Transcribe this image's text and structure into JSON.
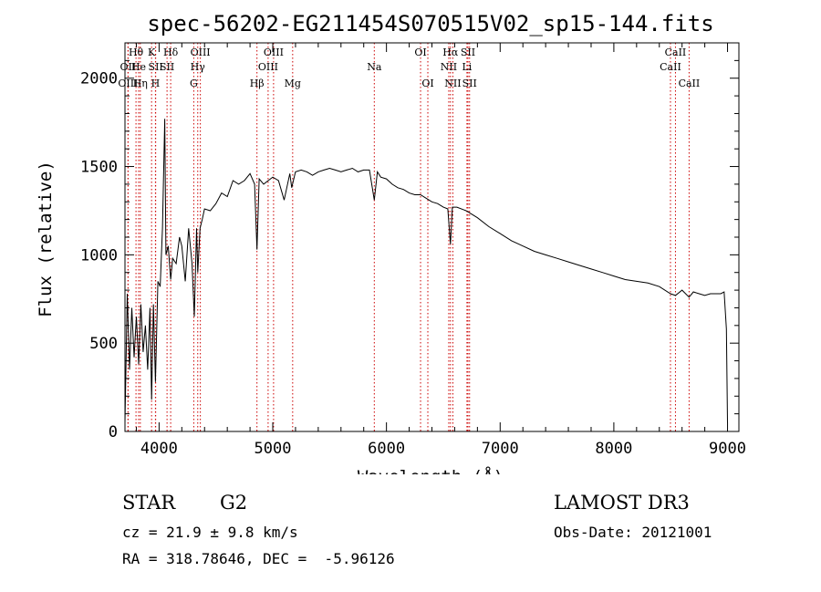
{
  "chart_data": {
    "type": "line",
    "title": "spec-56202-EG211454S070515V02_sp15-144.fits",
    "xlabel": "Wavelength (Å)",
    "ylabel": "Flux (relative)",
    "xlim": [
      3700,
      9100
    ],
    "ylim": [
      0,
      2200
    ],
    "xticks": [
      4000,
      5000,
      6000,
      7000,
      8000,
      9000
    ],
    "yticks": [
      0,
      500,
      1000,
      1500,
      2000
    ],
    "grid": false,
    "series": [
      {
        "name": "spectrum",
        "x": [
          3700,
          3720,
          3740,
          3760,
          3780,
          3800,
          3820,
          3840,
          3860,
          3880,
          3900,
          3920,
          3934,
          3950,
          3968,
          3990,
          4010,
          4030,
          4050,
          4060,
          4080,
          4102,
          4120,
          4150,
          4180,
          4200,
          4230,
          4260,
          4290,
          4310,
          4330,
          4340,
          4360,
          4380,
          4400,
          4450,
          4500,
          4550,
          4600,
          4650,
          4700,
          4750,
          4800,
          4840,
          4861,
          4880,
          4920,
          4960,
          5000,
          5050,
          5100,
          5150,
          5167,
          5200,
          5250,
          5300,
          5350,
          5400,
          5450,
          5500,
          5550,
          5600,
          5650,
          5700,
          5750,
          5800,
          5850,
          5893,
          5920,
          5950,
          6000,
          6050,
          6100,
          6150,
          6200,
          6250,
          6300,
          6350,
          6400,
          6450,
          6500,
          6540,
          6563,
          6580,
          6620,
          6700,
          6800,
          6900,
          7000,
          7100,
          7200,
          7300,
          7400,
          7500,
          7600,
          7700,
          7800,
          7900,
          8000,
          8100,
          8200,
          8300,
          8400,
          8498,
          8542,
          8600,
          8662,
          8700,
          8750,
          8800,
          8850,
          8900,
          8940,
          8970,
          8990,
          9000
        ],
        "y": [
          50,
          780,
          350,
          700,
          420,
          650,
          380,
          720,
          450,
          600,
          350,
          700,
          180,
          720,
          280,
          850,
          820,
          1150,
          1770,
          1000,
          1050,
          860,
          980,
          950,
          1100,
          1050,
          850,
          1150,
          950,
          650,
          1150,
          900,
          1150,
          1200,
          1260,
          1250,
          1290,
          1350,
          1330,
          1420,
          1400,
          1420,
          1460,
          1400,
          1030,
          1430,
          1400,
          1420,
          1440,
          1420,
          1310,
          1460,
          1380,
          1470,
          1480,
          1470,
          1450,
          1470,
          1480,
          1490,
          1480,
          1470,
          1480,
          1490,
          1470,
          1480,
          1480,
          1310,
          1470,
          1440,
          1430,
          1400,
          1380,
          1370,
          1350,
          1340,
          1340,
          1320,
          1300,
          1290,
          1270,
          1260,
          1060,
          1270,
          1270,
          1250,
          1210,
          1160,
          1120,
          1080,
          1050,
          1020,
          1000,
          980,
          960,
          940,
          920,
          900,
          880,
          860,
          850,
          840,
          820,
          780,
          770,
          800,
          760,
          790,
          780,
          770,
          780,
          780,
          780,
          790,
          580,
          50
        ]
      }
    ],
    "lines": [
      {
        "label": "Hθ",
        "x": 3797,
        "row": 1
      },
      {
        "label": "OII",
        "x": 3727,
        "row": 2
      },
      {
        "label": "OIII",
        "x": 3727,
        "row": 3
      },
      {
        "label": "He",
        "x": 3820,
        "row": 2
      },
      {
        "label": "Hη",
        "x": 3835,
        "row": 3
      },
      {
        "label": "K",
        "x": 3934,
        "row": 1
      },
      {
        "label": "SII",
        "x": 3970,
        "row": 2
      },
      {
        "label": "H",
        "x": 3968,
        "row": 3
      },
      {
        "label": "Hδ",
        "x": 4102,
        "row": 1
      },
      {
        "label": "SII",
        "x": 4070,
        "row": 2
      },
      {
        "label": "OIII",
        "x": 4363,
        "row": 1
      },
      {
        "label": "Hγ",
        "x": 4340,
        "row": 2
      },
      {
        "label": "G",
        "x": 4305,
        "row": 3
      },
      {
        "label": "Hβ",
        "x": 4861,
        "row": 3
      },
      {
        "label": "OIII",
        "x": 5007,
        "row": 1
      },
      {
        "label": "OIII",
        "x": 4959,
        "row": 2
      },
      {
        "label": "Mg",
        "x": 5175,
        "row": 3
      },
      {
        "label": "Na",
        "x": 5893,
        "row": 2
      },
      {
        "label": "OI",
        "x": 6300,
        "row": 1
      },
      {
        "label": "OI",
        "x": 6364,
        "row": 3
      },
      {
        "label": "Hα",
        "x": 6563,
        "row": 1
      },
      {
        "label": "NII",
        "x": 6548,
        "row": 2
      },
      {
        "label": "NII",
        "x": 6584,
        "row": 3
      },
      {
        "label": "SII",
        "x": 6717,
        "row": 1
      },
      {
        "label": "Li",
        "x": 6708,
        "row": 2
      },
      {
        "label": "SII",
        "x": 6731,
        "row": 3
      },
      {
        "label": "CaII",
        "x": 8542,
        "row": 1
      },
      {
        "label": "CaII",
        "x": 8498,
        "row": 2
      },
      {
        "label": "CaII",
        "x": 8662,
        "row": 3
      }
    ]
  },
  "info": {
    "object_class": "STAR",
    "subclass": "G2",
    "survey": "LAMOST DR3",
    "redshift_text": "cz = 21.9 ± 9.8 km/s",
    "obs_date": "Obs-Date: 20121001",
    "coords": "RA = 318.78646, DEC =  -5.96126"
  },
  "colors": {
    "line_marker": "#cc0000",
    "spectrum": "#000000",
    "axes": "#000000"
  }
}
